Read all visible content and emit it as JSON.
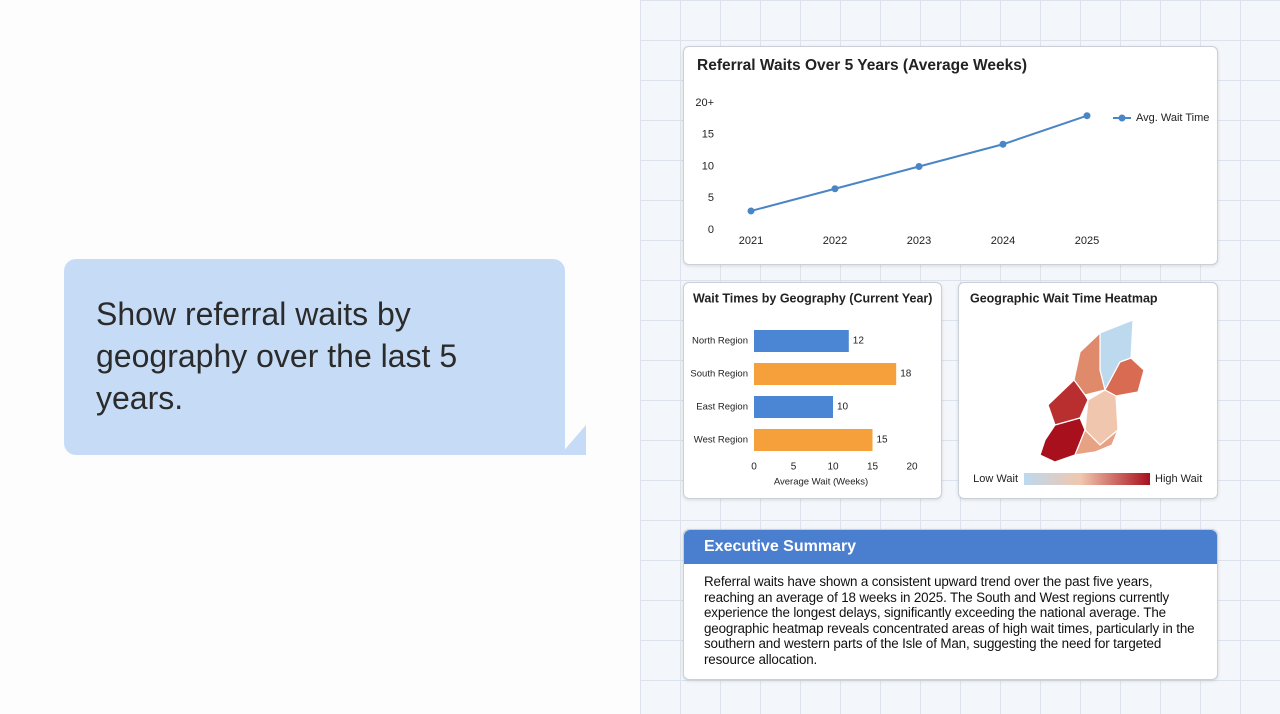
{
  "chat": {
    "message": "Show referral waits by geography over the last 5 years."
  },
  "chart_data": [
    {
      "type": "line",
      "title": "Referral Waits Over 5 Years (Average Weeks)",
      "categories": [
        "2021",
        "2022",
        "2023",
        "2024",
        "2025"
      ],
      "series": [
        {
          "name": "Avg. Wait Time",
          "color": "#4a86c5",
          "values": [
            3,
            6.5,
            10,
            13.5,
            18
          ]
        }
      ],
      "ylim": [
        0,
        20
      ],
      "yticks": [
        0,
        5,
        10,
        15,
        {
          "value": 20,
          "label": "20+"
        }
      ],
      "legend": "right"
    },
    {
      "type": "hbar",
      "title": "Wait Times by Geography (Current Year)",
      "categories": [
        "North Region",
        "South Region",
        "East Region",
        "West Region"
      ],
      "values": [
        12,
        18,
        10,
        15
      ],
      "colors": [
        "#4a86d4",
        "#f5a03a",
        "#4a86d4",
        "#f5a03a"
      ],
      "xlim": [
        0,
        20
      ],
      "xticks": [
        0,
        5,
        10,
        15,
        20
      ],
      "x_label": "Average Wait (Weeks)"
    }
  ],
  "heatmap": {
    "title": "Geographic Wait Time Heatmap",
    "low_label": "Low Wait",
    "high_label": "High Wait"
  },
  "summary": {
    "title": "Executive Summary",
    "text": "Referral waits have shown a consistent upward trend over the past five years, reaching an average of 18 weeks in 2025. The South and West regions currently experience the longest delays, significantly exceeding the national average. The geographic heatmap reveals concentrated areas of high wait times, particularly in the southern and western parts of the Isle of Man, suggesting the need for targeted resource allocation."
  }
}
